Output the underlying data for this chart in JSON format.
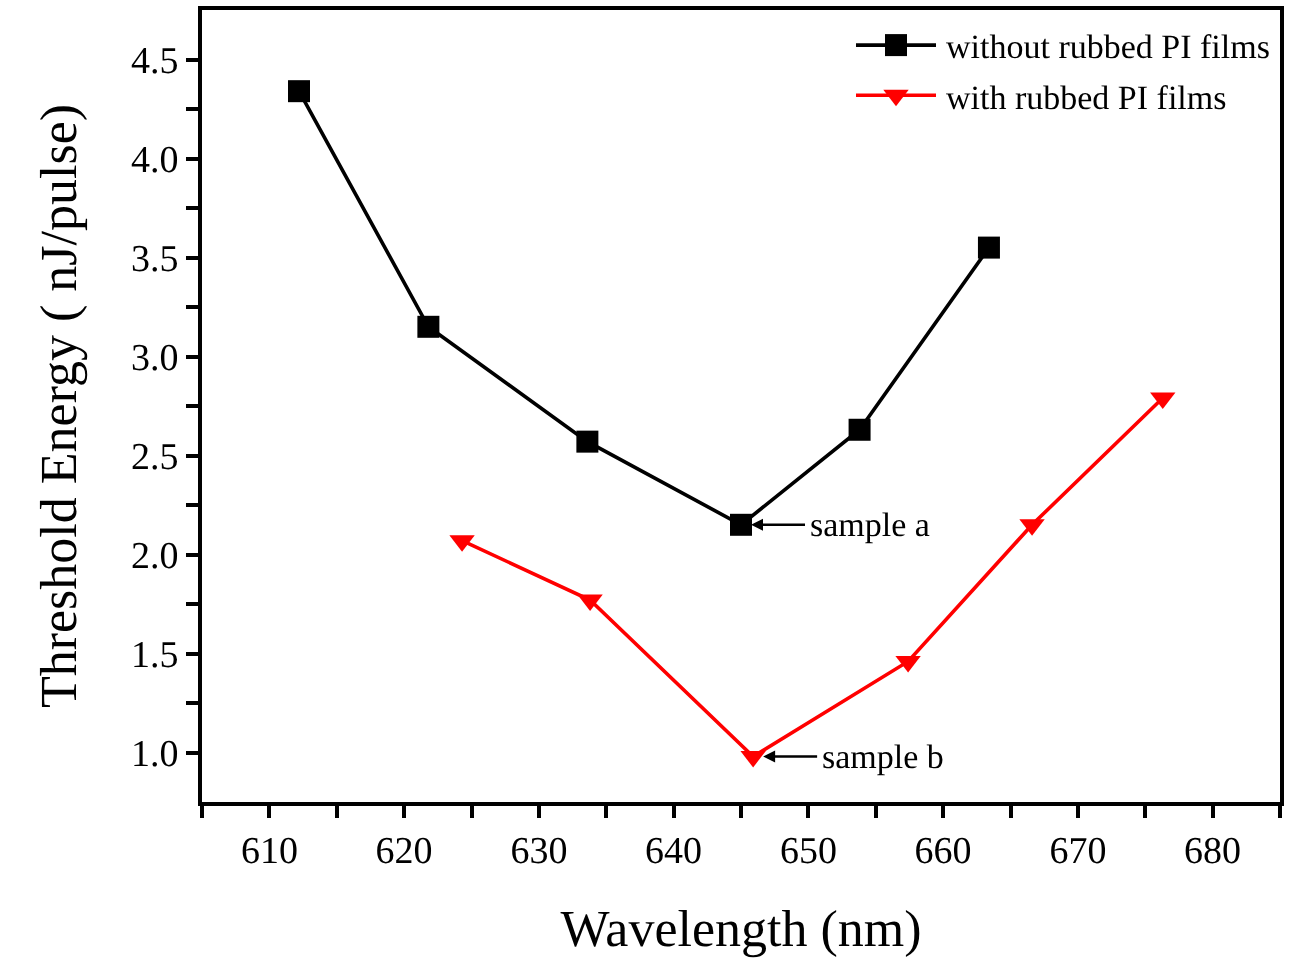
{
  "chart_data": {
    "type": "line",
    "xlabel": "Wavelength (nm)",
    "ylabel": "Threshold Energy ( nJ/pulse)",
    "xlim": [
      605,
      685
    ],
    "ylim": [
      0.75,
      4.75
    ],
    "xticks": [
      {
        "value": 605,
        "label": null
      },
      610,
      {
        "value": 615,
        "label": null
      },
      620,
      {
        "value": 625,
        "label": null
      },
      630,
      {
        "value": 635,
        "label": null
      },
      640,
      {
        "value": 645,
        "label": null
      },
      650,
      {
        "value": 655,
        "label": null
      },
      660,
      {
        "value": 665,
        "label": null
      },
      670,
      {
        "value": 675,
        "label": null
      },
      680,
      {
        "value": 685,
        "label": null
      }
    ],
    "yticks": [
      {
        "value": 1.0,
        "label": "1.0"
      },
      {
        "value": 1.25,
        "label": null
      },
      1.5,
      {
        "value": 1.75,
        "label": null
      },
      {
        "value": 2.0,
        "label": "2.0"
      },
      {
        "value": 2.25,
        "label": null
      },
      2.5,
      {
        "value": 2.75,
        "label": null
      },
      {
        "value": 3.0,
        "label": "3.0"
      },
      {
        "value": 3.25,
        "label": null
      },
      3.5,
      {
        "value": 3.75,
        "label": null
      },
      {
        "value": 4.0,
        "label": "4.0"
      },
      {
        "value": 4.25,
        "label": null
      },
      4.5
    ],
    "grid": false,
    "legend": "top right",
    "series": [
      {
        "name": "without rubbed PI films",
        "color": "#000000",
        "marker": "square",
        "x": [
          612.2,
          621.8,
          633.6,
          645.0,
          653.8,
          663.4
        ],
        "values": [
          4.34,
          3.15,
          2.57,
          2.15,
          2.63,
          3.55
        ]
      },
      {
        "name": "with rubbed PI films",
        "color": "#ff0000",
        "marker": "triangle",
        "x": [
          624.3,
          633.8,
          645.9,
          657.4,
          666.6,
          676.3
        ],
        "values": [
          2.07,
          1.77,
          0.98,
          1.46,
          2.15,
          2.79
        ]
      }
    ],
    "annotations": [
      {
        "text": "sample a",
        "x": 645.0,
        "y": 2.15
      },
      {
        "text": "sample b",
        "x": 645.9,
        "y": 0.98
      }
    ]
  }
}
